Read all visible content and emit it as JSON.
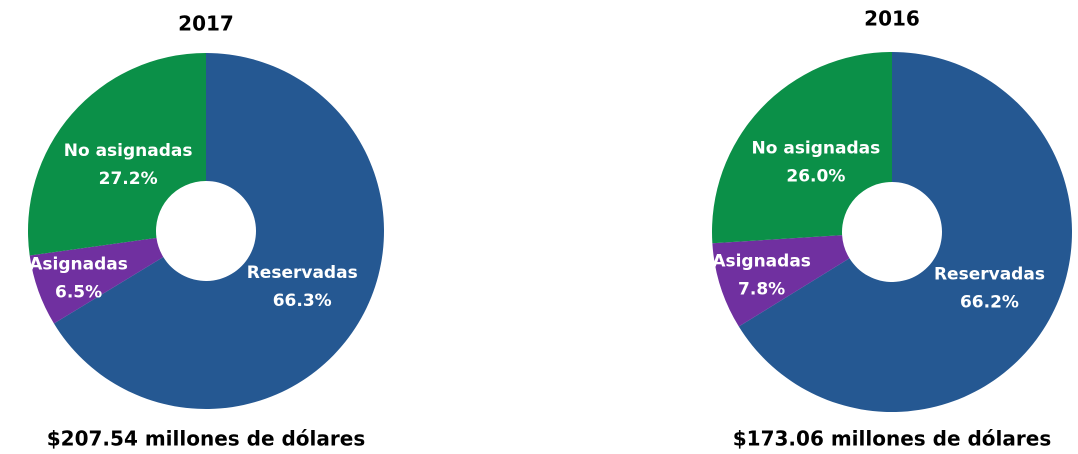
{
  "chart_data": [
    {
      "type": "pie",
      "title": "2017",
      "subtitle": "$207.54 millones de dólares",
      "categories": [
        "Reservadas",
        "Asignadas",
        "No asignadas"
      ],
      "values": [
        66.3,
        6.5,
        27.2
      ],
      "value_labels": [
        "66.3%",
        "6.5%",
        "27.2%"
      ],
      "colors": [
        "#255892",
        "#7030a0",
        "#0b9048"
      ]
    },
    {
      "type": "pie",
      "title": "2016",
      "subtitle": "$173.06 millones de dólares",
      "categories": [
        "Reservadas",
        "Asignadas",
        "No asignadas"
      ],
      "values": [
        66.2,
        7.8,
        26.0
      ],
      "value_labels": [
        "66.2%",
        "7.8%",
        "26.0%"
      ],
      "colors": [
        "#255892",
        "#7030a0",
        "#0b9048"
      ]
    }
  ]
}
